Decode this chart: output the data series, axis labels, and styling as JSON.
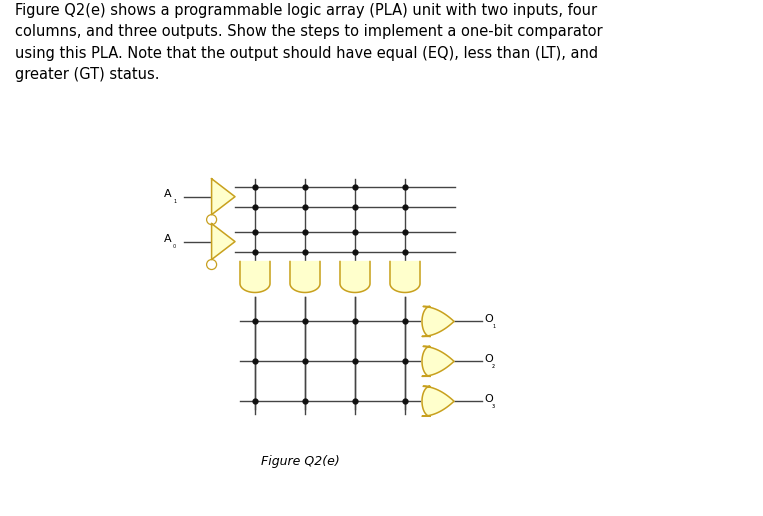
{
  "title_text": "Figure Q2(e)",
  "description_lines": [
    "Figure Q2(e) shows a programmable logic array (PLA) unit with two inputs, four",
    "columns, and three outputs. Show the steps to implement a one-bit comparator",
    "using this PLA. Note that the output should have equal (EQ), less than (LT), and",
    "greater (GT) status."
  ],
  "bg_color": "#ffffff",
  "gate_fill": "#ffffcc",
  "gate_edge": "#c8a020",
  "line_color": "#444444",
  "dot_color": "#111111",
  "text_color": "#000000",
  "input_labels": [
    "A₁",
    "A₀"
  ],
  "output_labels": [
    "O₁",
    "O₂",
    "O₃"
  ],
  "n_inputs": 2,
  "n_columns": 4,
  "n_outputs": 3
}
